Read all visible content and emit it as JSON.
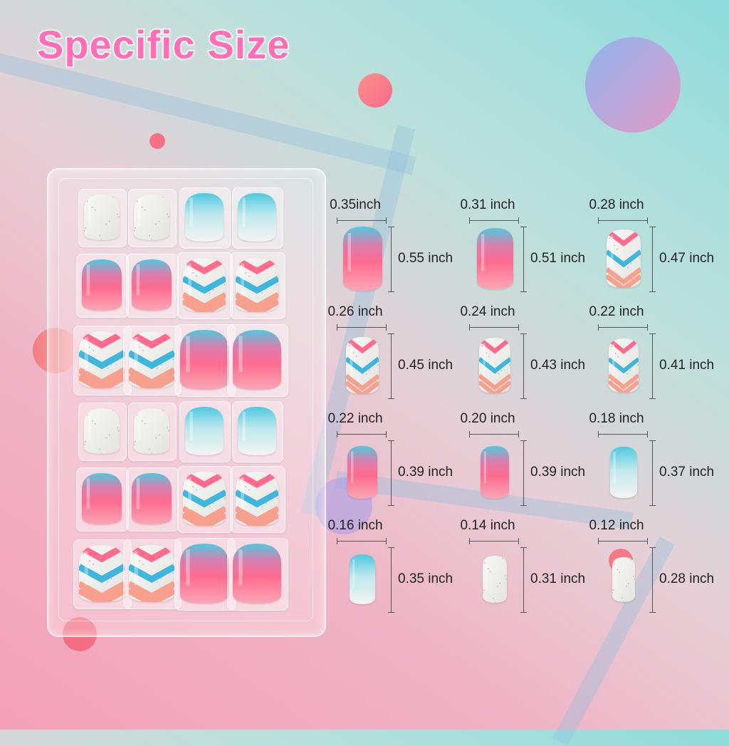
{
  "title": "Specific Size",
  "colors": {
    "pink": "#ff6b8f",
    "blue": "#4ec9de",
    "title": "#ff6fb7",
    "chevron_pink": "#ff6a8e",
    "chevron_blue": "#3fb6dc",
    "chevron_peach": "#f7a08e"
  },
  "tray": {
    "rows": [
      [
        "glitter",
        "glitter",
        "blue-white",
        "blue-white"
      ],
      [
        "blue-pink",
        "blue-pink",
        "chevron",
        "chevron"
      ],
      [
        "chevron",
        "chevron",
        "blue-pink",
        "blue-pink"
      ],
      [
        "glitter",
        "glitter",
        "blue-white",
        "blue-white"
      ],
      [
        "blue-pink",
        "blue-pink",
        "chevron",
        "chevron"
      ],
      [
        "chevron",
        "chevron",
        "blue-pink",
        "blue-pink"
      ]
    ]
  },
  "sizes": [
    {
      "width": "0.35inch",
      "height": "0.55 inch",
      "style": "blue-pink",
      "w": 0.35,
      "h": 0.55
    },
    {
      "width": "0.31 inch",
      "height": "0.51 inch",
      "style": "blue-pink",
      "w": 0.31,
      "h": 0.51
    },
    {
      "width": "0.28 inch",
      "height": "0.47 inch",
      "style": "chevron",
      "w": 0.28,
      "h": 0.47
    },
    {
      "width": "0.26 inch",
      "height": "0.45 inch",
      "style": "chevron",
      "w": 0.26,
      "h": 0.45
    },
    {
      "width": "0.24 inch",
      "height": "0.43 inch",
      "style": "chevron",
      "w": 0.24,
      "h": 0.43
    },
    {
      "width": "0.22 inch",
      "height": "0.41 inch",
      "style": "chevron",
      "w": 0.22,
      "h": 0.41
    },
    {
      "width": "0.22 inch",
      "height": "0.39 inch",
      "style": "blue-pink",
      "w": 0.22,
      "h": 0.39
    },
    {
      "width": "0.20 inch",
      "height": "0.39 inch",
      "style": "blue-pink",
      "w": 0.2,
      "h": 0.39
    },
    {
      "width": "0.18 inch",
      "height": "0.37 inch",
      "style": "blue-white",
      "w": 0.18,
      "h": 0.37
    },
    {
      "width": "0.16 inch",
      "height": "0.35 inch",
      "style": "blue-white",
      "w": 0.16,
      "h": 0.35
    },
    {
      "width": "0.14 inch",
      "height": "0.31 inch",
      "style": "glitter",
      "w": 0.14,
      "h": 0.31
    },
    {
      "width": "0.12 inch",
      "height": "0.28 inch",
      "style": "glitter",
      "w": 0.12,
      "h": 0.28
    }
  ]
}
